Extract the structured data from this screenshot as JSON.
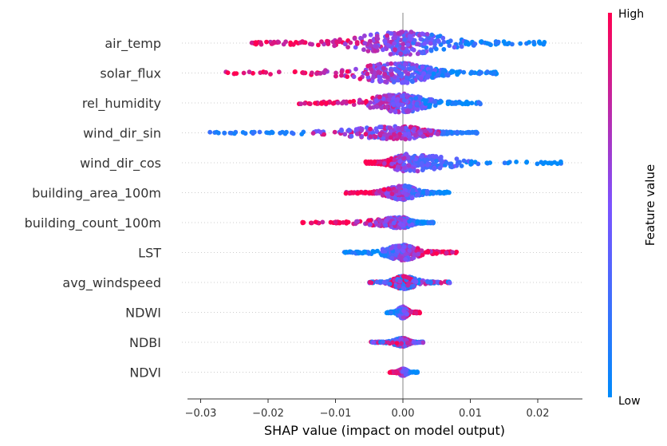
{
  "chart_data": {
    "type": "scatter",
    "subtype": "shap-beeswarm",
    "title": "",
    "xlabel": "SHAP value (impact on model output)",
    "ylabel": "",
    "xlim": [
      -0.033,
      0.027
    ],
    "xticks": [
      -0.03,
      -0.02,
      -0.01,
      0.0,
      0.01,
      0.02
    ],
    "xtick_labels": [
      "−0.03",
      "−0.02",
      "−0.01",
      "0.00",
      "0.01",
      "0.02"
    ],
    "grid": false,
    "colorbar": {
      "title": "Feature value",
      "high_label": "High",
      "low_label": "Low",
      "low_color": "#008bfb",
      "mid_color": "#7c52ff",
      "high_color": "#ff0051",
      "placement": "right"
    },
    "features": [
      {
        "name": "air_temp",
        "min": -0.0225,
        "max": 0.021,
        "spread": 1.0,
        "mode": "low-left"
      },
      {
        "name": "solar_flux",
        "min": -0.0265,
        "max": 0.014,
        "spread": 0.85,
        "mode": "high-left"
      },
      {
        "name": "rel_humidity",
        "min": -0.016,
        "max": 0.0115,
        "spread": 0.8,
        "mode": "high-left"
      },
      {
        "name": "wind_dir_sin",
        "min": -0.029,
        "max": 0.011,
        "spread": 0.55,
        "mode": "low-extremes"
      },
      {
        "name": "wind_dir_cos",
        "min": -0.0055,
        "max": 0.024,
        "spread": 0.75,
        "mode": "low-right"
      },
      {
        "name": "building_area_100m",
        "min": -0.0085,
        "max": 0.007,
        "spread": 0.6,
        "mode": "low-left"
      },
      {
        "name": "building_count_100m",
        "min": -0.015,
        "max": 0.0045,
        "spread": 0.45,
        "mode": "low-left"
      },
      {
        "name": "LST",
        "min": -0.0088,
        "max": 0.008,
        "spread": 0.65,
        "mode": "high-right"
      },
      {
        "name": "avg_windspeed",
        "min": -0.005,
        "max": 0.007,
        "spread": 0.55,
        "mode": "mixed"
      },
      {
        "name": "NDWI",
        "min": -0.0025,
        "max": 0.0025,
        "spread": 0.5,
        "mode": "high-right"
      },
      {
        "name": "NDBI",
        "min": -0.0048,
        "max": 0.003,
        "spread": 0.35,
        "mode": "mixed"
      },
      {
        "name": "NDVI",
        "min": -0.002,
        "max": 0.0022,
        "spread": 0.3,
        "mode": "low-left"
      }
    ]
  }
}
